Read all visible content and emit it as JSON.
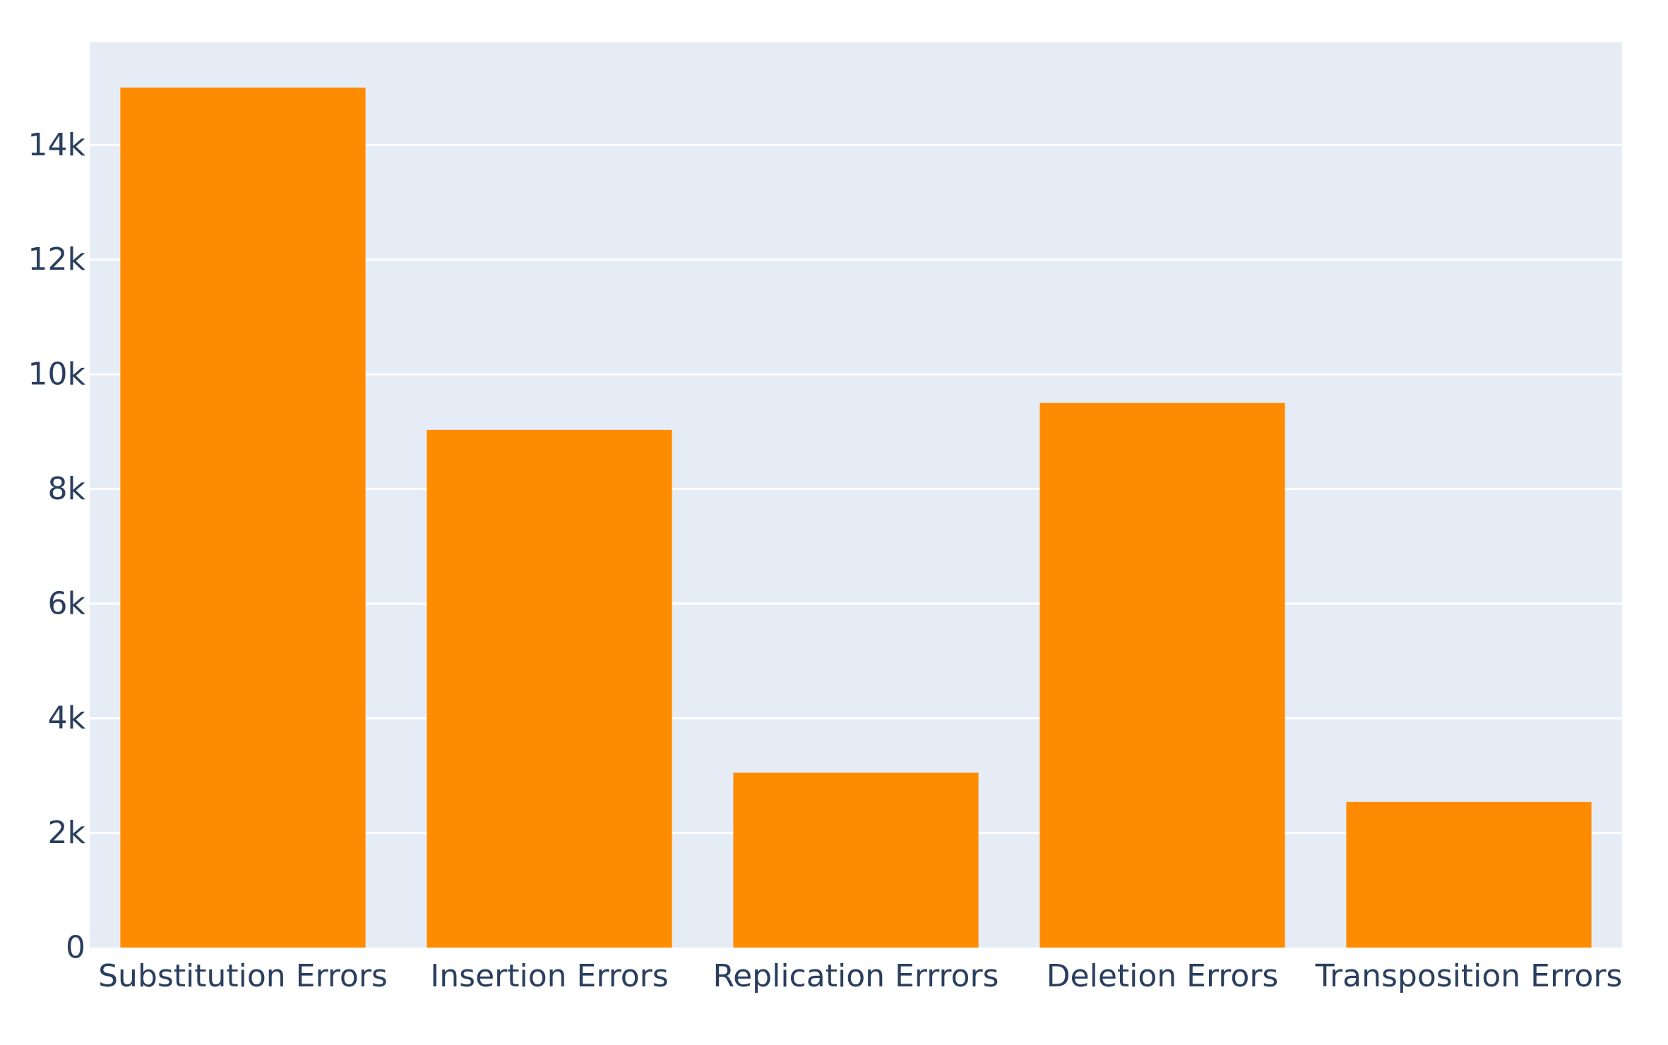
{
  "chart_data": {
    "type": "bar",
    "title": "",
    "xlabel": "",
    "ylabel": "",
    "categories": [
      "Substitution Errors",
      "Insertion Errors",
      "Replication Errrors",
      "Deletion Errors",
      "Transposition Errors"
    ],
    "values": [
      15000,
      9030,
      3050,
      9500,
      2540
    ],
    "ylim": [
      0,
      15790
    ],
    "yticks": [
      0,
      2000,
      4000,
      6000,
      8000,
      10000,
      12000,
      14000
    ],
    "ytick_labels": [
      "0",
      "2k",
      "4k",
      "6k",
      "8k",
      "10k",
      "12k",
      "14k"
    ],
    "grid": true,
    "legend": "none",
    "colors": {
      "bar": "#ff8c00",
      "plot_background": "#e5ecf6",
      "gridline": "#ffffff",
      "text": "#2a3f5f",
      "page_background": "#ffffff"
    }
  }
}
